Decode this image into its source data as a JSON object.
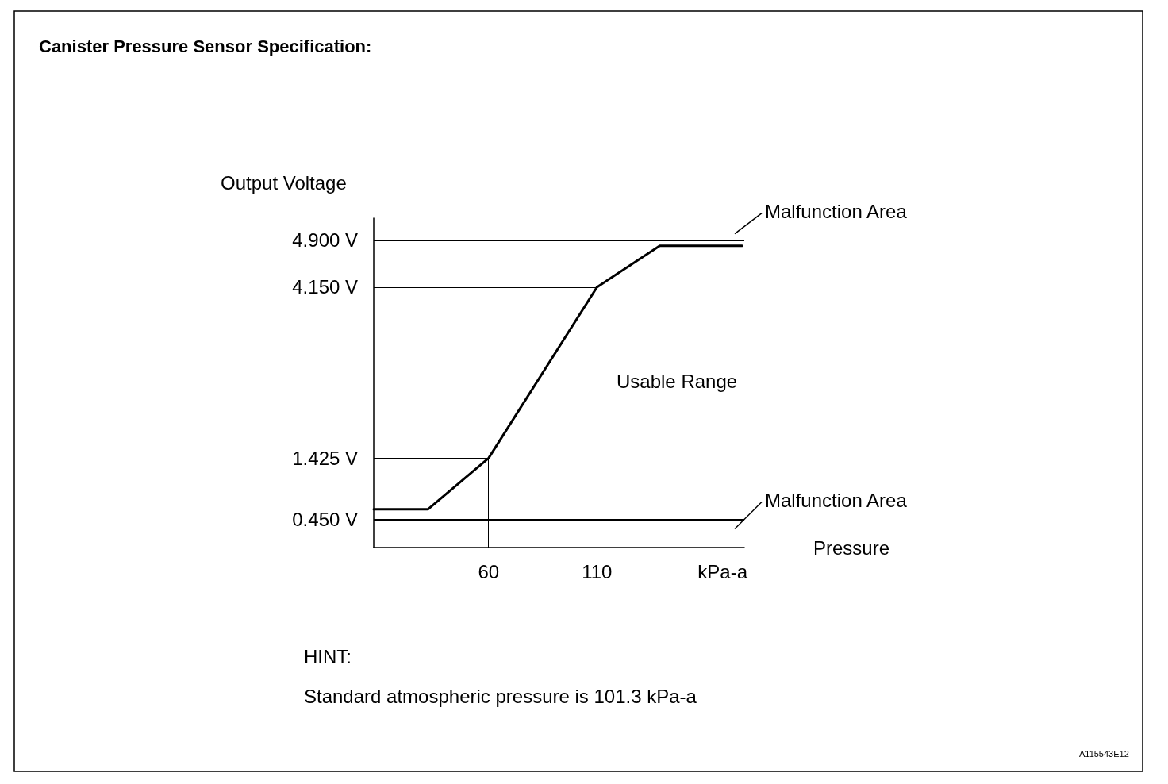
{
  "chart_data": {
    "type": "line",
    "title": "Canister Pressure Sensor Specification:",
    "xlabel": "Pressure",
    "ylabel": "Output Voltage",
    "x": [
      7,
      32,
      60,
      110,
      139,
      177
    ],
    "series": [
      {
        "color": "#000000",
        "values": [
          0.61,
          0.61,
          1.425,
          4.15,
          4.81,
          4.81
        ]
      }
    ],
    "xlim": [
      7,
      178
    ],
    "xticks": [
      60,
      110,
      {
        "value": 168,
        "label": "kPa-a"
      }
    ],
    "ylim": [
      0,
      5.25
    ],
    "yticks": [
      {
        "value": 0.45,
        "label": "0.450 V"
      },
      {
        "value": 1.425,
        "label": "1.425 V"
      },
      {
        "value": 4.15,
        "label": "4.150 V"
      },
      {
        "value": 4.9,
        "label": "4.900 V"
      }
    ],
    "ref_lines": [
      {
        "axis": "y",
        "value": 4.9,
        "label": "Malfunction Area"
      },
      {
        "axis": "y",
        "value": 0.45,
        "label": "Malfunction Area"
      },
      {
        "axis": "x",
        "value": 60
      },
      {
        "axis": "x",
        "value": 110
      },
      {
        "axis": "y",
        "value": 1.425
      },
      {
        "axis": "y",
        "value": 4.15
      }
    ],
    "annotations": [
      "Usable Range",
      "HINT:",
      "Standard atmospheric pressure is 101.3 kPa-a",
      "A115543E12"
    ],
    "grid": false,
    "marker": "none",
    "line_style": "solid"
  }
}
